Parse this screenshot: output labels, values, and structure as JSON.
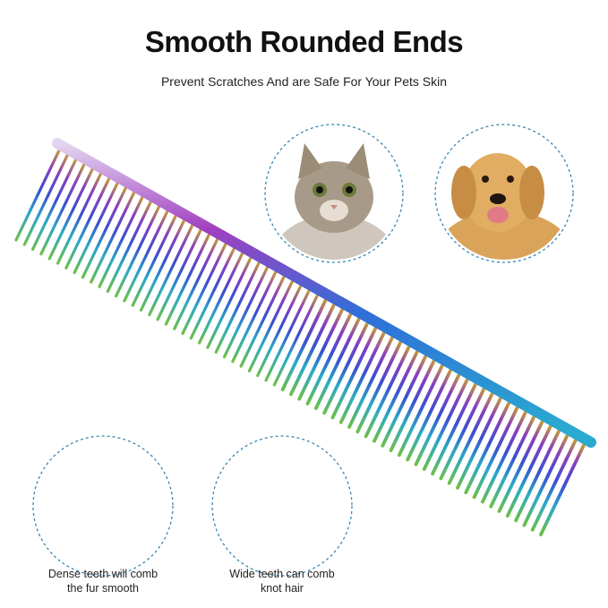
{
  "header": {
    "title": "Smooth Rounded Ends",
    "subtitle": "Prevent Scratches And are Safe For Your Pets Skin"
  },
  "images": {
    "cat": "cat-photo",
    "dog": "dog-photo",
    "comb": "rainbow-steel-comb"
  },
  "captions": {
    "dense": [
      "Dense teeth will comb",
      "the fur smooth"
    ],
    "wide": [
      "Wide teeth can comb",
      "knot hair"
    ]
  },
  "colors": {
    "circle_border": "#3a86b0",
    "text": "#222222"
  }
}
